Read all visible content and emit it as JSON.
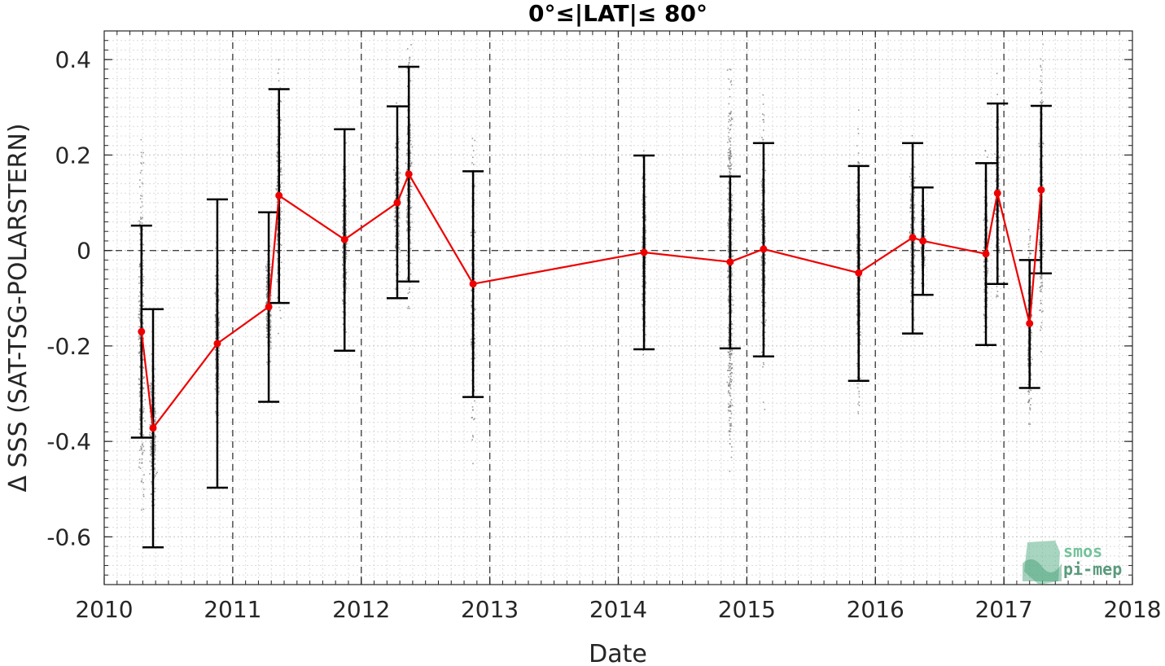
{
  "chart_data": {
    "type": "scatter",
    "title": "0°≤|LAT|≤ 80°",
    "xlabel": "Date",
    "ylabel": "Δ SSS (SAT-TSG-POLARSTERN)",
    "xlim": [
      2010,
      2018
    ],
    "ylim": [
      -0.7,
      0.46
    ],
    "x_ticks": [
      2010,
      2011,
      2012,
      2013,
      2014,
      2015,
      2016,
      2017,
      2018
    ],
    "x_tick_labels": [
      "2010",
      "2011",
      "2012",
      "2013",
      "2014",
      "2015",
      "2016",
      "2017",
      "2018"
    ],
    "y_ticks": [
      -0.6,
      -0.4,
      -0.2,
      0,
      0.2,
      0.4
    ],
    "y_tick_labels": [
      "-0.6",
      "-0.4",
      "-0.2",
      "0",
      "0.2",
      "0.4"
    ],
    "grid": true,
    "year_dividers": [
      2011,
      2012,
      2013,
      2014,
      2015,
      2016,
      2017
    ],
    "zero_line": 0,
    "colors": {
      "mean_line": "#ee0000",
      "error_bar": "#000000",
      "scatter": "#7f7f7f",
      "divider": "#444444",
      "logo": "#5fb38a"
    },
    "series": [
      {
        "points": [
          {
            "x": 2010.29,
            "y": -0.17,
            "low": -0.392,
            "high": 0.052,
            "sd": 0.05,
            "spread": 0.55,
            "dense": false
          },
          {
            "x": 2010.38,
            "y": -0.372,
            "low": -0.622,
            "high": -0.123,
            "sd": 0.05,
            "spread": 0.25,
            "dense": false
          },
          {
            "x": 2010.88,
            "y": -0.195,
            "low": -0.497,
            "high": 0.107,
            "sd": 0.03,
            "spread": 0.3,
            "dense": true
          },
          {
            "x": 2011.28,
            "y": -0.118,
            "low": -0.317,
            "high": 0.08,
            "sd": 0.04,
            "spread": 0.2,
            "dense": false
          },
          {
            "x": 2011.36,
            "y": 0.115,
            "low": -0.11,
            "high": 0.338,
            "sd": 0.04,
            "spread": 0.4,
            "dense": false
          },
          {
            "x": 2011.87,
            "y": 0.023,
            "low": -0.21,
            "high": 0.254,
            "sd": 0.03,
            "spread": 0.3,
            "dense": true
          },
          {
            "x": 2012.28,
            "y": 0.1,
            "low": -0.1,
            "high": 0.302,
            "sd": 0.04,
            "spread": 0.25,
            "dense": false
          },
          {
            "x": 2012.37,
            "y": 0.16,
            "low": -0.065,
            "high": 0.385,
            "sd": 0.04,
            "spread": 0.4,
            "dense": false
          },
          {
            "x": 2012.87,
            "y": -0.07,
            "low": -0.307,
            "high": 0.166,
            "sd": 0.03,
            "spread": 0.5,
            "dense": false
          },
          {
            "x": 2014.2,
            "y": -0.004,
            "low": -0.207,
            "high": 0.199,
            "sd": 0.03,
            "spread": 0.3,
            "dense": true
          },
          {
            "x": 2014.87,
            "y": -0.024,
            "low": -0.205,
            "high": 0.155,
            "sd": 0.04,
            "spread": 0.6,
            "dense": true
          },
          {
            "x": 2015.13,
            "y": 0.003,
            "low": -0.222,
            "high": 0.225,
            "sd": 0.03,
            "spread": 0.4,
            "dense": true
          },
          {
            "x": 2015.87,
            "y": -0.047,
            "low": -0.273,
            "high": 0.177,
            "sd": 0.03,
            "spread": 0.4,
            "dense": true
          },
          {
            "x": 2016.29,
            "y": 0.027,
            "low": -0.174,
            "high": 0.225,
            "sd": 0.04,
            "spread": 0.3,
            "dense": false
          },
          {
            "x": 2016.37,
            "y": 0.02,
            "low": -0.093,
            "high": 0.132,
            "sd": 0.03,
            "spread": 0.15,
            "dense": false
          },
          {
            "x": 2016.86,
            "y": -0.007,
            "low": -0.198,
            "high": 0.183,
            "sd": 0.03,
            "spread": 0.3,
            "dense": false
          },
          {
            "x": 2016.95,
            "y": 0.12,
            "low": -0.07,
            "high": 0.308,
            "sd": 0.03,
            "spread": 0.3,
            "dense": false
          },
          {
            "x": 2017.2,
            "y": -0.153,
            "low": -0.288,
            "high": -0.02,
            "sd": 0.03,
            "spread": 0.3,
            "dense": false
          },
          {
            "x": 2017.29,
            "y": 0.127,
            "low": -0.048,
            "high": 0.303,
            "sd": 0.03,
            "spread": 0.45,
            "dense": false
          }
        ]
      }
    ]
  },
  "logo": {
    "line1": "smos",
    "line2": "pi-mep"
  }
}
